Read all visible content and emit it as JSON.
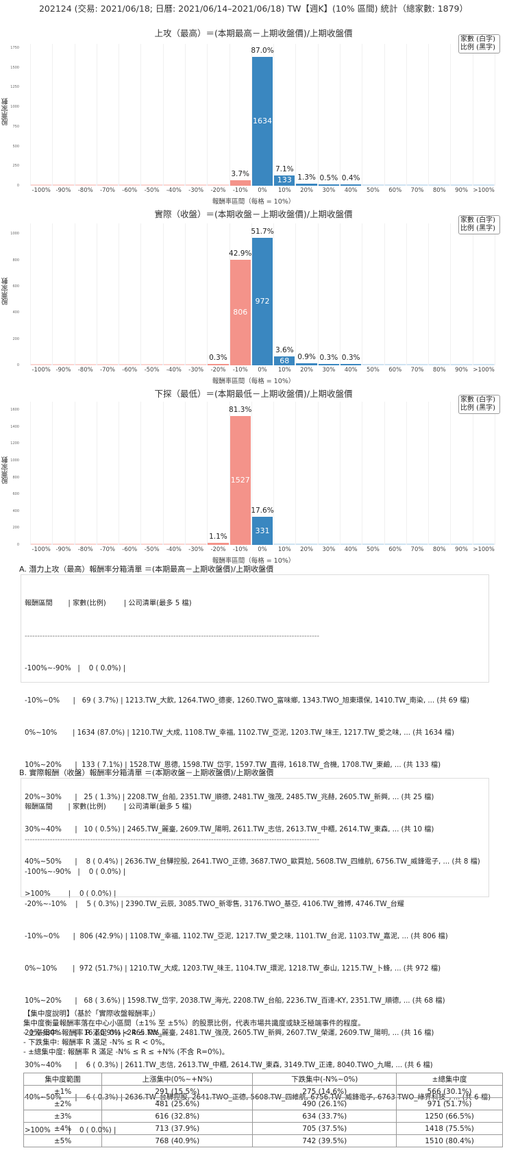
{
  "header": {
    "title": "202124 (交易: 2021/06/18; 日曆: 2021/06/14–2021/06/18) TW【週K】(10% 區間) 統計（總家數: 1879）"
  },
  "colors": {
    "negative_bar": "#f4938a",
    "positive_bar": "#3a87c0",
    "text": "#222222"
  },
  "legend": {
    "line1": "家數 (白字)",
    "line2": "比例 (黑字)"
  },
  "chart_data": [
    {
      "type": "bar",
      "title": "上攻（最高）＝(本期最高－上期收盤價)/上期收盤價",
      "xlabel": "報酬率區間（每格 = 10%）",
      "ylabel": "股票家數",
      "ylim": [
        0,
        1800
      ],
      "yticks": [
        0,
        250,
        500,
        750,
        1000,
        1250,
        1500,
        1750
      ],
      "categories": [
        "-100%",
        "-90%",
        "-80%",
        "-70%",
        "-60%",
        "-50%",
        "-40%",
        "-30%",
        "-20%",
        "-10%",
        "0%",
        "10%",
        "20%",
        "30%",
        "40%",
        "50%",
        "60%",
        "70%",
        "80%",
        "90%",
        ">100%"
      ],
      "values": [
        0,
        0,
        0,
        0,
        0,
        0,
        0,
        0,
        0,
        69,
        1634,
        133,
        25,
        10,
        8,
        0,
        0,
        0,
        0,
        0,
        0
      ],
      "percent_labels": [
        "",
        "",
        "",
        "",
        "",
        "",
        "",
        "",
        "",
        "3.7%",
        "87.0%",
        "7.1%",
        "1.3%",
        "0.5%",
        "0.4%",
        "",
        "",
        "",
        "",
        "",
        ""
      ],
      "grid": true,
      "legend_position": "top-right"
    },
    {
      "type": "bar",
      "title": "實際（收盤）＝(本期收盤－上期收盤價)/上期收盤價",
      "xlabel": "報酬率區間（每格 = 10%）",
      "ylabel": "股票家數",
      "ylim": [
        0,
        1080
      ],
      "yticks": [
        0,
        200,
        400,
        600,
        800,
        1000
      ],
      "categories": [
        "-100%",
        "-90%",
        "-80%",
        "-70%",
        "-60%",
        "-50%",
        "-40%",
        "-30%",
        "-20%",
        "-10%",
        "0%",
        "10%",
        "20%",
        "30%",
        "40%",
        "50%",
        "60%",
        "70%",
        "80%",
        "90%",
        ">100%"
      ],
      "values": [
        0,
        0,
        0,
        0,
        0,
        0,
        0,
        0,
        5,
        806,
        972,
        68,
        16,
        6,
        6,
        0,
        0,
        0,
        0,
        0,
        0
      ],
      "percent_labels": [
        "",
        "",
        "",
        "",
        "",
        "",
        "",
        "",
        "0.3%",
        "42.9%",
        "51.7%",
        "3.6%",
        "0.9%",
        "0.3%",
        "0.3%",
        "",
        "",
        "",
        "",
        "",
        ""
      ],
      "grid": true,
      "legend_position": "top-right"
    },
    {
      "type": "bar",
      "title": "下探（最低）＝(本期最低－上期收盤價)/上期收盤價",
      "xlabel": "報酬率區間（每格 = 10%）",
      "ylabel": "股票家數",
      "ylim": [
        0,
        1700
      ],
      "yticks": [
        0,
        200,
        400,
        600,
        800,
        1000,
        1200,
        1400,
        1600
      ],
      "categories": [
        "-100%",
        "-90%",
        "-80%",
        "-70%",
        "-60%",
        "-50%",
        "-40%",
        "-30%",
        "-20%",
        "-10%",
        "0%",
        "10%",
        "20%",
        "30%",
        "40%",
        "50%",
        "60%",
        "70%",
        "80%",
        "90%",
        ">100%"
      ],
      "values": [
        0,
        0,
        0,
        0,
        0,
        0,
        0,
        0,
        21,
        1527,
        331,
        0,
        0,
        0,
        0,
        0,
        0,
        0,
        0,
        0,
        0
      ],
      "percent_labels": [
        "",
        "",
        "",
        "",
        "",
        "",
        "",
        "",
        "1.1%",
        "81.3%",
        "17.6%",
        "",
        "",
        "",
        "",
        "",
        "",
        "",
        "",
        "",
        ""
      ],
      "grid": true,
      "legend_position": "top-right"
    }
  ],
  "section_a": {
    "title": "A. 潛力上攻（最高）報酬率分箱清單 ＝(本期最高－上期收盤價)/上期收盤價",
    "header": "報酬區間       | 家數(比例)        | 公司清單(最多 5 檔)",
    "divider": "---------------------------------------------------------------------------------------------------------------------",
    "rows": [
      "-100%~-90%   |    0 ( 0.0%) |",
      "-10%~0%      |   69 ( 3.7%) | 1213.TW_大飲, 1264.TWO_德麥, 1260.TWO_富味鄉, 1343.TWO_旭東環保, 1410.TW_南染, ... (共 69 檔)",
      "0%~10%       | 1634 (87.0%) | 1210.TW_大成, 1108.TW_幸福, 1102.TW_亞泥, 1203.TW_味王, 1217.TW_愛之味, ... (共 1634 檔)",
      "10%~20%      |  133 ( 7.1%) | 1528.TW_恩德, 1598.TW_岱宇, 1597.TW_直得, 1618.TW_合機, 1708.TW_東鹼, ... (共 133 檔)",
      "20%~30%      |   25 ( 1.3%) | 2208.TW_台船, 2351.TW_順德, 2481.TW_強茂, 2485.TW_兆赫, 2605.TW_新興, ... (共 25 檔)",
      "30%~40%      |   10 ( 0.5%) | 2465.TW_麗臺, 2609.TW_陽明, 2611.TW_志信, 2613.TW_中櫃, 2614.TW_東森, ... (共 10 檔)",
      "40%~50%      |    8 ( 0.4%) | 2636.TW_台驊控股, 2641.TWO_正德, 3687.TWO_歐買尬, 5608.TW_四維航, 6756.TW_威鋒電子, ... (共 8 檔)",
      ">100%        |    0 ( 0.0%) |"
    ]
  },
  "section_b": {
    "title": "B. 實際報酬（收盤）報酬率分箱清單 ＝(本期收盤－上期收盤價)/上期收盤價",
    "header": "報酬區間       | 家數(比例)        | 公司清單(最多 5 檔)",
    "divider": "---------------------------------------------------------------------------------------------------------------------",
    "rows": [
      "-100%~-90%   |    0 ( 0.0%) |",
      "-20%~-10%    |    5 ( 0.3%) | 2390.TW_云辰, 3085.TWO_新零售, 3176.TWO_基亞, 4106.TW_雅博, 4746.TW_台耀",
      "-10%~0%      |  806 (42.9%) | 1108.TW_幸福, 1102.TW_亞泥, 1217.TW_愛之味, 1101.TW_台泥, 1103.TW_嘉泥, ... (共 806 檔)",
      "0%~10%       |  972 (51.7%) | 1210.TW_大成, 1203.TW_味王, 1104.TW_環泥, 1218.TW_泰山, 1215.TW_卜蜂, ... (共 972 檔)",
      "10%~20%      |   68 ( 3.6%) | 1598.TW_岱宇, 2038.TW_海光, 2208.TW_台船, 2236.TW_百達-KY, 2351.TW_順德, ... (共 68 檔)",
      "20%~30%      |   16 ( 0.9%) | 2465.TW_麗臺, 2481.TW_強茂, 2605.TW_新興, 2607.TW_榮運, 2609.TW_陽明, ... (共 16 檔)",
      "30%~40%      |    6 ( 0.3%) | 2611.TW_志信, 2613.TW_中櫃, 2614.TW_東森, 3149.TW_正達, 8040.TWO_九暘, ... (共 6 檔)",
      "40%~50%      |    6 ( 0.3%) | 2636.TW_台驊控股, 2641.TWO_正德, 5608.TW_四維航, 6756.TW_威鋒電子, 6763.TWO_綠界科技_, ... (共 6 檔)",
      ">100%        |    0 ( 0.0%) |"
    ]
  },
  "concentration": {
    "heading": "【集中度說明】（基於「實際收盤報酬率」）",
    "description": "集中度衡量報酬率落在中心小區間（±1% 至 ±5%）的股票比例，代表市場共識度或缺乏極端事件的程度。",
    "bullets": [
      "- 上漲集中: 報酬率 R 滿足 0% < R ≤ N%。",
      "- 下跌集中: 報酬率 R 滿足 -N% ≤ R < 0%。",
      "- ±總集中度: 報酬率 R 滿足 -N% ≤ R ≤ +N% (不含 R=0%)。"
    ],
    "table": {
      "headers": [
        "集中度範圍",
        "上漲集中(0%~+N%)",
        "下跌集中(-N%~0%)",
        "±總集中度"
      ],
      "rows": [
        [
          "±1%",
          "291 (15.5%)",
          "275 (14.6%)",
          "566 (30.1%)"
        ],
        [
          "±2%",
          "481 (25.6%)",
          "490 (26.1%)",
          "971 (51.7%)"
        ],
        [
          "±3%",
          "616 (32.8%)",
          "634 (33.7%)",
          "1250 (66.5%)"
        ],
        [
          "±4%",
          "713 (37.9%)",
          "705 (37.5%)",
          "1418 (75.5%)"
        ],
        [
          "±5%",
          "768 (40.9%)",
          "742 (39.5%)",
          "1510 (80.4%)"
        ]
      ]
    }
  }
}
